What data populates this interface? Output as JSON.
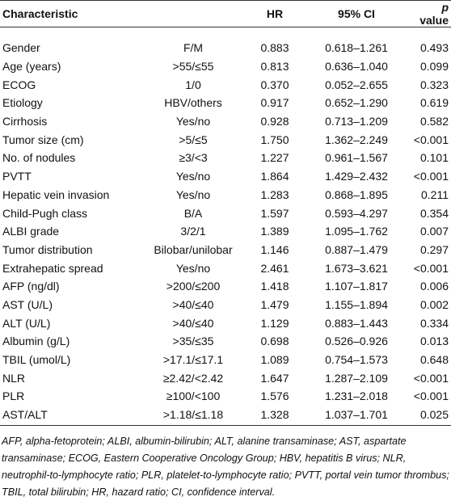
{
  "table": {
    "header": {
      "characteristic": "Characteristic",
      "hr": "HR",
      "ci": "95% CI",
      "p_value": [
        "p",
        "value"
      ]
    },
    "rows": [
      [
        "Gender",
        "F/M",
        "0.883",
        "0.618–1.261",
        "0.493"
      ],
      [
        "Age (years)",
        ">55/≤55",
        "0.813",
        "0.636–1.040",
        "0.099"
      ],
      [
        "ECOG",
        "1/0",
        "0.370",
        "0.052–2.655",
        "0.323"
      ],
      [
        "Etiology",
        "HBV/others",
        "0.917",
        "0.652–1.290",
        "0.619"
      ],
      [
        "Cirrhosis",
        "Yes/no",
        "0.928",
        "0.713–1.209",
        "0.582"
      ],
      [
        "Tumor size (cm)",
        ">5/≤5",
        "1.750",
        "1.362–2.249",
        "<0.001"
      ],
      [
        "No. of nodules",
        "≥3/<3",
        "1.227",
        "0.961–1.567",
        "0.101"
      ],
      [
        "PVTT",
        "Yes/no",
        "1.864",
        "1.429–2.432",
        "<0.001"
      ],
      [
        "Hepatic vein invasion",
        "Yes/no",
        "1.283",
        "0.868–1.895",
        "0.211"
      ],
      [
        "Child-Pugh class",
        "B/A",
        "1.597",
        "0.593–4.297",
        "0.354"
      ],
      [
        "ALBI grade",
        "3/2/1",
        "1.389",
        "1.095–1.762",
        "0.007"
      ],
      [
        "Tumor distribution",
        "Bilobar/unilobar",
        "1.146",
        "0.887–1.479",
        "0.297"
      ],
      [
        "Extrahepatic spread",
        "Yes/no",
        "2.461",
        "1.673–3.621",
        "<0.001"
      ],
      [
        "AFP (ng/dl)",
        ">200/≤200",
        "1.418",
        "1.107–1.817",
        "0.006"
      ],
      [
        "AST (U/L)",
        ">40/≤40",
        "1.479",
        "1.155–1.894",
        "0.002"
      ],
      [
        "ALT (U/L)",
        ">40/≤40",
        "1.129",
        "0.883–1.443",
        "0.334"
      ],
      [
        "Albumin (g/L)",
        ">35/≤35",
        "0.698",
        "0.526–0.926",
        "0.013"
      ],
      [
        "TBIL (umol/L)",
        ">17.1/≤17.1",
        "1.089",
        "0.754–1.573",
        "0.648"
      ],
      [
        "NLR",
        "≥2.42/<2.42",
        "1.647",
        "1.287–2.109",
        "<0.001"
      ],
      [
        "PLR",
        "≥100/<100",
        "1.576",
        "1.231–2.018",
        "<0.001"
      ],
      [
        "AST/ALT",
        ">1.18/≤1.18",
        "1.328",
        "1.037–1.701",
        "0.025"
      ]
    ]
  },
  "footnote": "AFP, alpha-fetoprotein; ALBI, albumin-bilirubin; ALT, alanine transaminase; AST, aspartate transaminase; ECOG, Eastern Cooperative Oncology Group; HBV, hepatitis B virus; NLR, neutrophil-to-lymphocyte ratio; PLR, platelet-to-lymphocyte ratio; PVTT, portal vein tumor thrombus; TBIL, total bilirubin; HR, hazard ratio; CI, confidence interval."
}
